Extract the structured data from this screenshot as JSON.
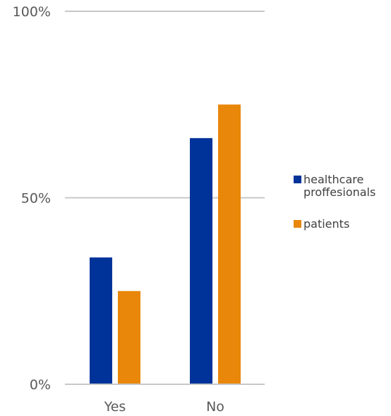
{
  "chart_data": {
    "type": "bar",
    "categories": [
      "Yes",
      "No"
    ],
    "series": [
      {
        "name": "healthcare proffesionals",
        "values": [
          34,
          66
        ],
        "color": "#003399"
      },
      {
        "name": "patients",
        "values": [
          25,
          75
        ],
        "color": "#E8870A"
      }
    ],
    "ylim": [
      0,
      100
    ],
    "yticks": [
      {
        "value": 0,
        "label": "0%"
      },
      {
        "value": 50,
        "label": "50%"
      },
      {
        "value": 100,
        "label": "100%"
      }
    ],
    "grid": true,
    "gridline_color": "#c8c8c8",
    "legend": {
      "placement": "right",
      "entries": [
        {
          "lines": [
            "healthcare",
            "proffesionals"
          ],
          "color": "#003399"
        },
        {
          "lines": [
            "patients"
          ],
          "color": "#E8870A"
        }
      ]
    }
  }
}
